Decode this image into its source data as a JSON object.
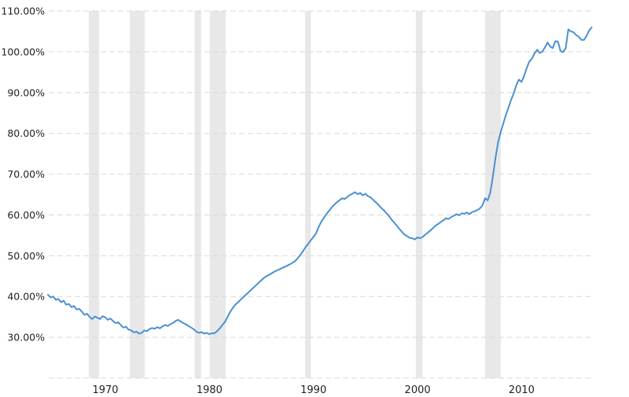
{
  "page": {
    "background_color": "#ffffff",
    "description": "line chart of debt to GDP percentage over time with recession shading"
  },
  "colors": {
    "line": "#4a90d2",
    "recession_band": "#e8e8e8",
    "gridline": "#d9d9d9",
    "axis_text": "#222222",
    "background": "#ffffff"
  },
  "chart_data": {
    "type": "line",
    "title": "",
    "xlabel": "",
    "ylabel": "",
    "legend": "none",
    "grid": "dashed-horizontal",
    "xlim": [
      1966.07,
      2018.43
    ],
    "ylim": [
      20,
      110
    ],
    "y_gridline_values": [
      110,
      100,
      90,
      80,
      70,
      60,
      50,
      40,
      30,
      20
    ],
    "y_tick_values": [
      110,
      100,
      90,
      80,
      70,
      60,
      50,
      40,
      30
    ],
    "y_tick_labels": [
      "110.00%",
      "100.00%",
      "90.00%",
      "80.00%",
      "70.00%",
      "60.00%",
      "50.00%",
      "40.00%",
      "30.00%"
    ],
    "x_tick_values": [
      1970,
      1980,
      1990,
      2000,
      2010
    ],
    "x_tick_labels": [
      "1970",
      "1980",
      "1990",
      "2000",
      "2010"
    ],
    "recession_bands_years": [
      [
        1969.92,
        1970.92
      ],
      [
        1973.87,
        1975.29
      ],
      [
        1980.08,
        1980.71
      ],
      [
        1981.54,
        1983.08
      ],
      [
        1990.7,
        1991.25
      ],
      [
        2001.35,
        2002.0
      ],
      [
        2008.0,
        2009.5
      ]
    ],
    "series": [
      {
        "name": "percent-of-gdp",
        "x_start": 1966.0,
        "x_step": 0.25,
        "values": [
          40.4,
          39.8,
          40.0,
          39.2,
          39.4,
          38.6,
          39.0,
          38.0,
          38.2,
          37.4,
          37.7,
          36.8,
          37.0,
          36.3,
          35.5,
          35.8,
          35.0,
          34.5,
          35.1,
          34.8,
          34.5,
          35.2,
          34.9,
          34.3,
          34.6,
          34.0,
          33.5,
          33.7,
          33.0,
          32.4,
          32.6,
          31.9,
          31.7,
          31.2,
          31.4,
          30.9,
          31.1,
          31.7,
          31.5,
          32.0,
          32.3,
          32.1,
          32.5,
          32.2,
          32.7,
          33.0,
          32.8,
          33.2,
          33.5,
          34.0,
          34.3,
          33.9,
          33.5,
          33.2,
          32.8,
          32.4,
          32.0,
          31.4,
          31.1,
          31.3,
          30.9,
          31.1,
          30.8,
          31.0,
          31.0,
          31.5,
          32.2,
          33.0,
          33.8,
          35.0,
          36.2,
          37.2,
          38.0,
          38.6,
          39.2,
          39.8,
          40.4,
          41.0,
          41.6,
          42.2,
          42.8,
          43.4,
          44.0,
          44.6,
          45.0,
          45.3,
          45.7,
          46.1,
          46.4,
          46.7,
          47.0,
          47.3,
          47.6,
          47.9,
          48.3,
          48.7,
          49.4,
          50.2,
          51.1,
          52.1,
          52.9,
          53.8,
          54.6,
          55.5,
          57.0,
          58.3,
          59.3,
          60.2,
          61.0,
          61.8,
          62.5,
          63.1,
          63.6,
          64.1,
          63.9,
          64.4,
          64.9,
          65.2,
          65.6,
          65.1,
          65.4,
          64.8,
          65.2,
          64.6,
          64.3,
          63.7,
          63.1,
          62.5,
          61.8,
          61.2,
          60.5,
          59.8,
          58.9,
          58.2,
          57.4,
          56.6,
          55.9,
          55.2,
          54.8,
          54.4,
          54.3,
          54.0,
          54.5,
          54.3,
          54.6,
          55.2,
          55.7,
          56.2,
          56.8,
          57.4,
          57.8,
          58.3,
          58.7,
          59.2,
          59.0,
          59.5,
          59.8,
          60.2,
          59.9,
          60.4,
          60.3,
          60.6,
          60.2,
          60.7,
          60.9,
          61.2,
          61.6,
          62.3,
          64.1,
          63.6,
          65.5,
          69.5,
          74.0,
          77.8,
          80.3,
          82.4,
          84.5,
          86.3,
          88.2,
          89.8,
          91.8,
          93.2,
          92.6,
          94.1,
          96.0,
          97.6,
          98.3,
          99.6,
          100.5,
          99.7,
          100.0,
          101.1,
          102.3,
          101.3,
          100.9,
          102.6,
          102.5,
          100.2,
          99.9,
          100.9,
          105.5,
          105.0,
          104.8,
          104.1,
          103.7,
          102.9,
          102.9,
          103.9,
          105.2,
          106.0
        ]
      }
    ]
  }
}
